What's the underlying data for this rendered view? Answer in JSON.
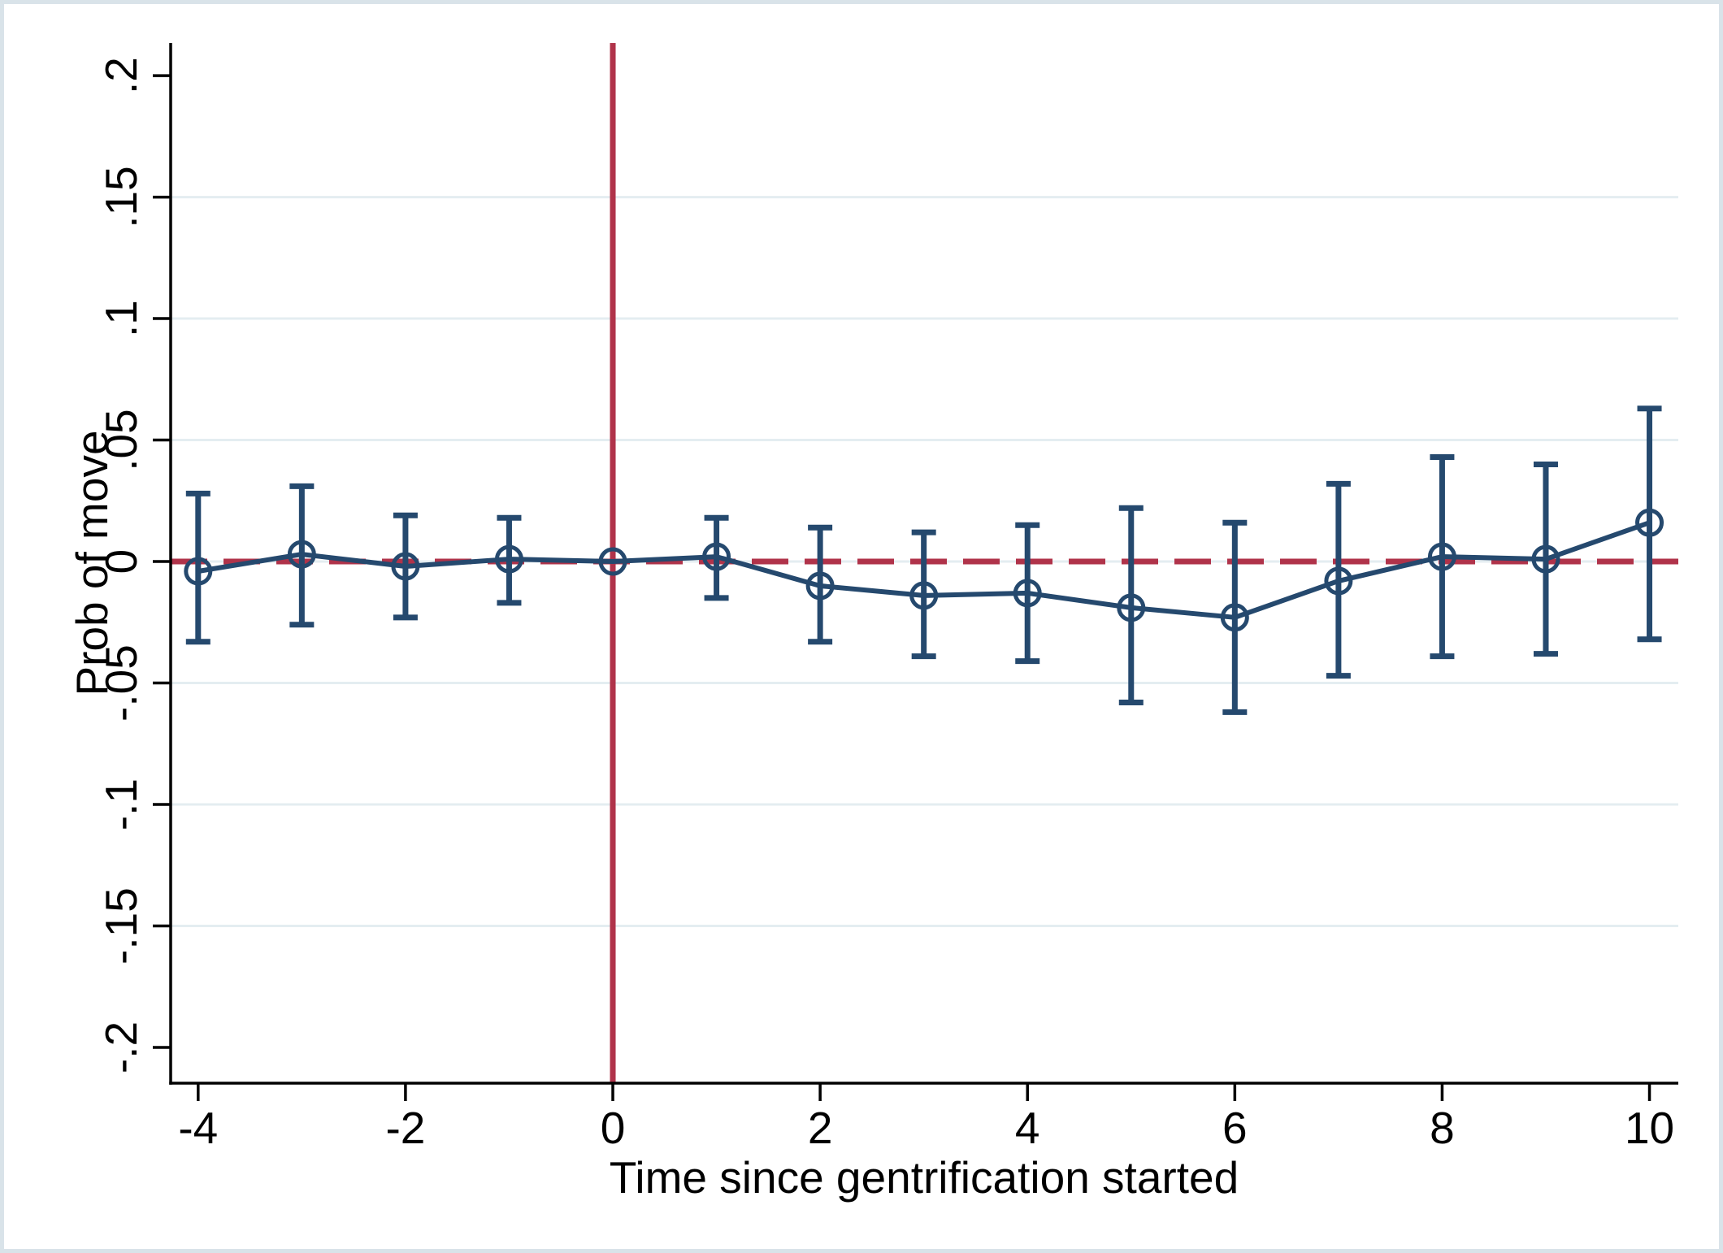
{
  "chart_data": {
    "type": "line",
    "subtype": "event-study-with-error-bars",
    "title": "",
    "xlabel": "Time since gentrification started",
    "ylabel": "Prob of move",
    "xlim": [
      -4.265,
      10.278
    ],
    "ylim": [
      -0.2147,
      0.2134
    ],
    "x_ticks": {
      "values": [
        -4,
        -2,
        0,
        2,
        4,
        6,
        8,
        10
      ],
      "labels": [
        "-4",
        "-2",
        "0",
        "2",
        "4",
        "6",
        "8",
        "10"
      ]
    },
    "y_ticks": {
      "values": [
        0.2,
        0.15,
        0.1,
        0.05,
        0,
        -0.05,
        -0.1,
        -0.15,
        -0.2
      ],
      "labels": [
        ".2",
        ".15",
        ".1",
        ".05",
        "0",
        "-.05",
        "-.1",
        "-.15",
        "-.2"
      ]
    },
    "gridline_values": [
      0.15,
      0.1,
      0.05,
      0,
      -0.05,
      -0.1,
      -0.15
    ],
    "grid": "on",
    "legend": "none",
    "reference_lines": {
      "vline_x": 0,
      "vline_style": "solid",
      "hline_y": 0,
      "hline_style": "dashed"
    },
    "series": [
      {
        "name": "Prob of move",
        "marker": "hollow-circle",
        "points": [
          {
            "x": -4,
            "y": -0.004,
            "ci_low": -0.033,
            "ci_high": 0.028
          },
          {
            "x": -3,
            "y": 0.003,
            "ci_low": -0.026,
            "ci_high": 0.031
          },
          {
            "x": -2,
            "y": -0.002,
            "ci_low": -0.023,
            "ci_high": 0.019
          },
          {
            "x": -1,
            "y": 0.001,
            "ci_low": -0.017,
            "ci_high": 0.018
          },
          {
            "x": 0,
            "y": 0.0,
            "ci_low": null,
            "ci_high": null
          },
          {
            "x": 1,
            "y": 0.002,
            "ci_low": -0.015,
            "ci_high": 0.018
          },
          {
            "x": 2,
            "y": -0.01,
            "ci_low": -0.033,
            "ci_high": 0.014
          },
          {
            "x": 3,
            "y": -0.014,
            "ci_low": -0.039,
            "ci_high": 0.012
          },
          {
            "x": 4,
            "y": -0.013,
            "ci_low": -0.041,
            "ci_high": 0.015
          },
          {
            "x": 5,
            "y": -0.019,
            "ci_low": -0.058,
            "ci_high": 0.022
          },
          {
            "x": 6,
            "y": -0.023,
            "ci_low": -0.062,
            "ci_high": 0.016
          },
          {
            "x": 7,
            "y": -0.008,
            "ci_low": -0.047,
            "ci_high": 0.032
          },
          {
            "x": 8,
            "y": 0.002,
            "ci_low": -0.039,
            "ci_high": 0.043
          },
          {
            "x": 9,
            "y": 0.001,
            "ci_low": -0.038,
            "ci_high": 0.04
          },
          {
            "x": 10,
            "y": 0.016,
            "ci_low": -0.032,
            "ci_high": 0.063
          }
        ]
      }
    ],
    "colors": {
      "series": "#25496E",
      "reference": "#B0334A",
      "gridline": "#E4EDF1",
      "axis": "#000000",
      "canvas_border": "#D9E3E9",
      "background": "#FFFFFF"
    }
  }
}
